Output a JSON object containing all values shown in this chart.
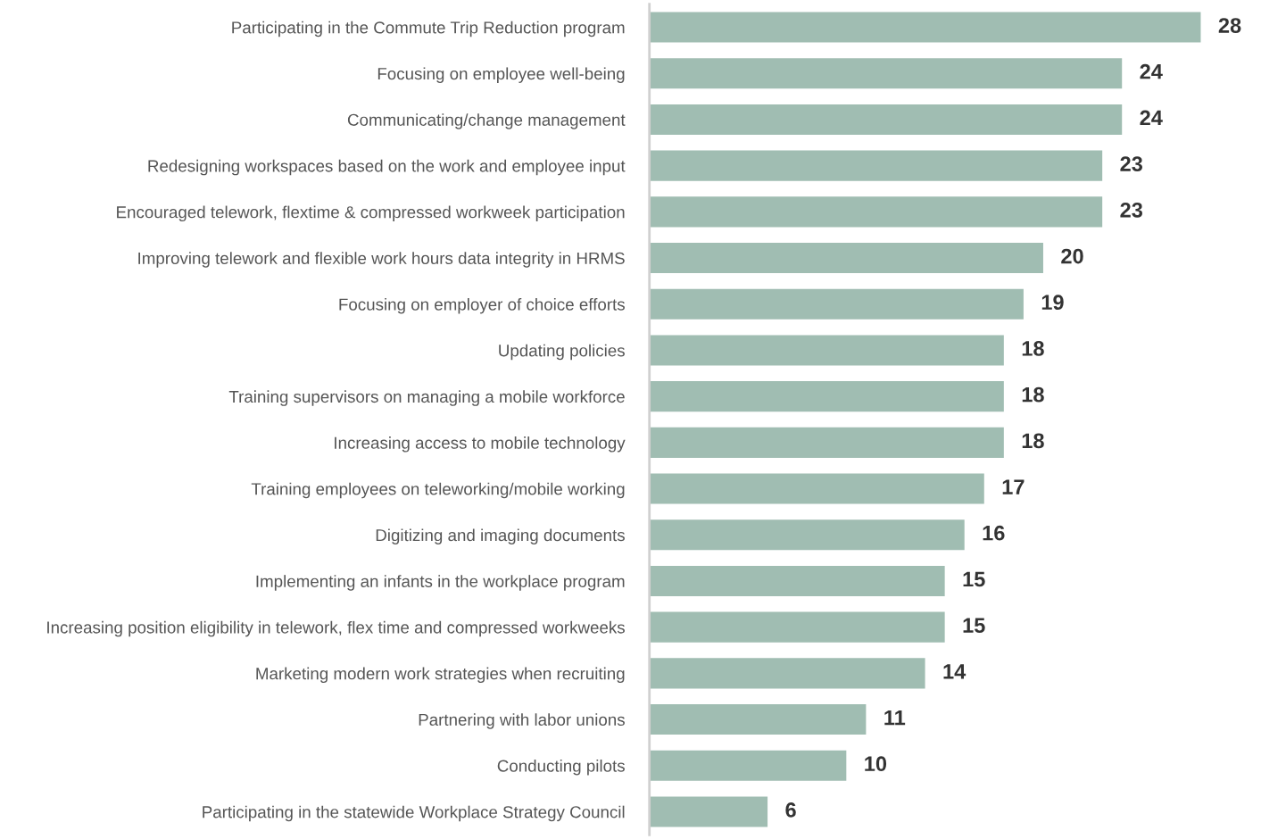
{
  "chart_data": {
    "type": "bar",
    "orientation": "horizontal",
    "data_labels": true,
    "grid": false,
    "legend": false,
    "tick_labels": "y",
    "color": "#a0bdb2",
    "categories": [
      "Participating in the Commute Trip Reduction program",
      "Focusing on employee well-being",
      "Communicating/change management",
      "Redesigning workspaces based on the work and employee input",
      "Encouraged telework, flextime & compressed workweek participation",
      "Improving telework and flexible work hours data integrity in HRMS",
      "Focusing on employer of choice efforts",
      "Updating policies",
      "Training supervisors on managing a mobile workforce",
      "Increasing access to mobile technology",
      "Training employees on teleworking/mobile working",
      "Digitizing and imaging documents",
      "Implementing an infants in the workplace program",
      "Increasing position eligibility in telework, flex time and compressed workweeks",
      "Marketing modern work strategies when recruiting",
      "Partnering with labor unions",
      "Conducting pilots",
      "Participating in the statewide Workplace Strategy Council"
    ],
    "values": [
      28,
      24,
      24,
      23,
      23,
      20,
      19,
      18,
      18,
      18,
      17,
      16,
      15,
      15,
      14,
      11,
      10,
      6
    ]
  }
}
